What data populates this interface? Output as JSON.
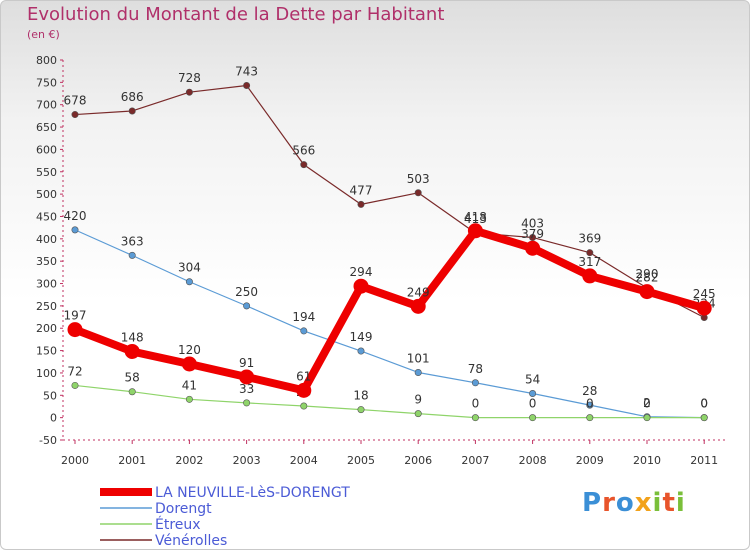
{
  "header": {
    "title": "Evolution du Montant de la Dette par Habitant",
    "subtitle": "(en €)"
  },
  "logo": {
    "text": "Proxiti",
    "colors": [
      "#3b8fd6",
      "#e8542b",
      "#3b8fd6",
      "#f2a21b",
      "#7abf3a",
      "#e8542b",
      "#7abf3a"
    ]
  },
  "chart_data": {
    "type": "line",
    "title": "Evolution du Montant de la Dette par Habitant",
    "subtitle": "(en €)",
    "xlabel": "",
    "ylabel": "",
    "ylim": [
      -50,
      800
    ],
    "yticks": [
      -50,
      0,
      50,
      100,
      150,
      200,
      250,
      300,
      350,
      400,
      450,
      500,
      550,
      600,
      650,
      700,
      750,
      800
    ],
    "categories": [
      "2000",
      "2001",
      "2002",
      "2003",
      "2004",
      "2005",
      "2006",
      "2007",
      "2008",
      "2009",
      "2010",
      "2011"
    ],
    "grid": false,
    "legend_position": "bottom-left",
    "series": [
      {
        "name": "Vénérolles",
        "color": "#7a2a2a",
        "width": 1.2,
        "values": [
          678,
          686,
          728,
          743,
          566,
          477,
          503,
          413,
          403,
          369,
          290,
          224
        ]
      },
      {
        "name": "Dorengt",
        "color": "#5b9bd5",
        "width": 1.2,
        "values": [
          420,
          363,
          304,
          250,
          194,
          149,
          101,
          78,
          54,
          28,
          2,
          0
        ]
      },
      {
        "name": "Étreux",
        "color": "#8fd46a",
        "width": 1.2,
        "values": [
          72,
          58,
          41,
          33,
          26,
          18,
          9,
          0,
          0,
          0,
          0,
          0
        ]
      },
      {
        "name": "LA NEUVILLE-LèS-DORENGT",
        "color": "#ee0000",
        "width": 8,
        "values": [
          197,
          148,
          120,
          91,
          61,
          294,
          249,
          418,
          379,
          317,
          282,
          245
        ]
      }
    ],
    "legend": [
      "LA NEUVILLE-LèS-DORENGT",
      "Dorengt",
      "Étreux",
      "Vénérolles"
    ]
  }
}
